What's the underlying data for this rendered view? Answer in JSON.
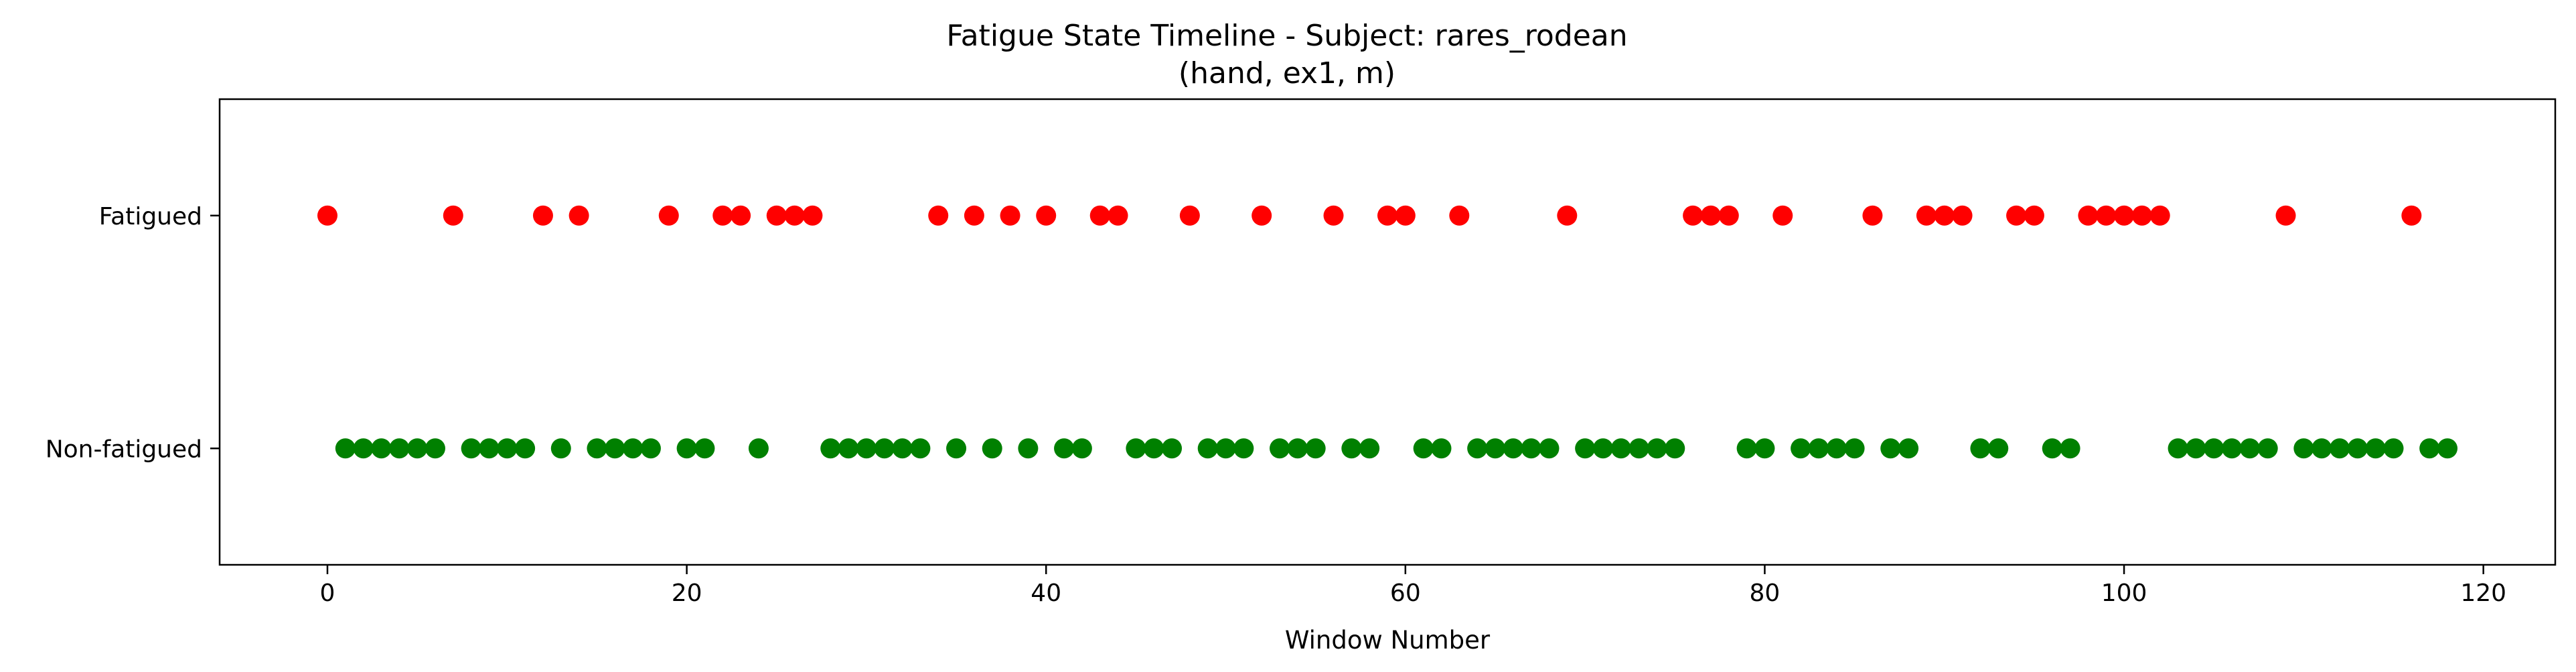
{
  "chart_data": {
    "type": "scatter",
    "title": "Fatigue State Timeline - Subject: rares_rodean",
    "subtitle": "(hand, ex1, m)",
    "xlabel": "Window Number",
    "ylabel": "",
    "xlim": [
      -6,
      124
    ],
    "ylim": [
      -0.5,
      1.5
    ],
    "x_ticks": [
      0,
      20,
      40,
      60,
      80,
      100,
      120
    ],
    "y_ticks": [
      {
        "value": 1,
        "label": "Fatigued"
      },
      {
        "value": 0,
        "label": "Non-fatigued"
      }
    ],
    "grid": false,
    "legend": "none",
    "series": [
      {
        "color": "#ff0000",
        "y": 1,
        "x": [
          0,
          7,
          12,
          14,
          19,
          22,
          23,
          25,
          26,
          27,
          34,
          36,
          38,
          40,
          43,
          44,
          48,
          52,
          56,
          59,
          60,
          63,
          69,
          76,
          77,
          78,
          81,
          86,
          89,
          90,
          91,
          94,
          95,
          98,
          99,
          100,
          101,
          102,
          109,
          116
        ]
      },
      {
        "color": "#008000",
        "y": 0,
        "x": [
          1,
          2,
          3,
          4,
          5,
          6,
          8,
          9,
          10,
          11,
          13,
          15,
          16,
          17,
          18,
          20,
          21,
          24,
          28,
          29,
          30,
          31,
          32,
          33,
          35,
          37,
          39,
          41,
          42,
          45,
          46,
          47,
          49,
          50,
          51,
          53,
          54,
          55,
          57,
          58,
          61,
          62,
          64,
          65,
          66,
          67,
          68,
          70,
          71,
          72,
          73,
          74,
          75,
          79,
          80,
          82,
          83,
          84,
          85,
          87,
          88,
          92,
          93,
          96,
          97,
          103,
          104,
          105,
          106,
          107,
          108,
          110,
          111,
          112,
          113,
          114,
          115,
          117,
          118
        ]
      }
    ]
  }
}
